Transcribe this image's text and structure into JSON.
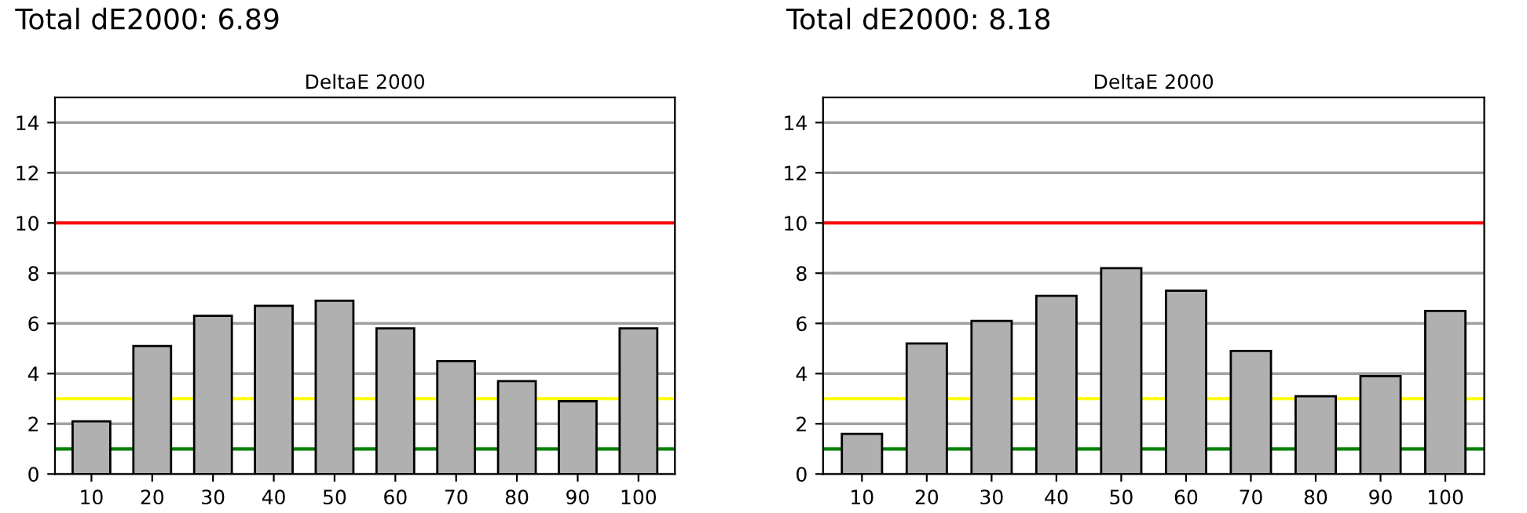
{
  "chart_data": [
    {
      "type": "bar",
      "title": "Total dE2000: 6.89",
      "subtitle": "DeltaE 2000",
      "categories": [
        "10",
        "20",
        "30",
        "40",
        "50",
        "60",
        "70",
        "80",
        "90",
        "100"
      ],
      "values": [
        2.1,
        5.1,
        6.3,
        6.7,
        6.9,
        5.8,
        4.5,
        3.7,
        2.9,
        5.8
      ],
      "color": "#b0b0b0",
      "ylim": [
        0,
        15
      ],
      "yticks": [
        0,
        2,
        4,
        6,
        8,
        10,
        12,
        14
      ],
      "grid": "y",
      "ref_lines": [
        {
          "axis": "y",
          "value": 10,
          "color": "#ff0000"
        },
        {
          "axis": "y",
          "value": 3,
          "color": "#ffff00"
        },
        {
          "axis": "y",
          "value": 1,
          "color": "#008000"
        }
      ]
    },
    {
      "type": "bar",
      "title": "Total dE2000: 8.18",
      "subtitle": "DeltaE 2000",
      "categories": [
        "10",
        "20",
        "30",
        "40",
        "50",
        "60",
        "70",
        "80",
        "90",
        "100"
      ],
      "values": [
        1.6,
        5.2,
        6.1,
        7.1,
        8.2,
        7.3,
        4.9,
        3.1,
        3.9,
        6.5
      ],
      "color": "#b0b0b0",
      "ylim": [
        0,
        15
      ],
      "yticks": [
        0,
        2,
        4,
        6,
        8,
        10,
        12,
        14
      ],
      "grid": "y",
      "ref_lines": [
        {
          "axis": "y",
          "value": 10,
          "color": "#ff0000"
        },
        {
          "axis": "y",
          "value": 3,
          "color": "#ffff00"
        },
        {
          "axis": "y",
          "value": 1,
          "color": "#008000"
        }
      ]
    }
  ]
}
